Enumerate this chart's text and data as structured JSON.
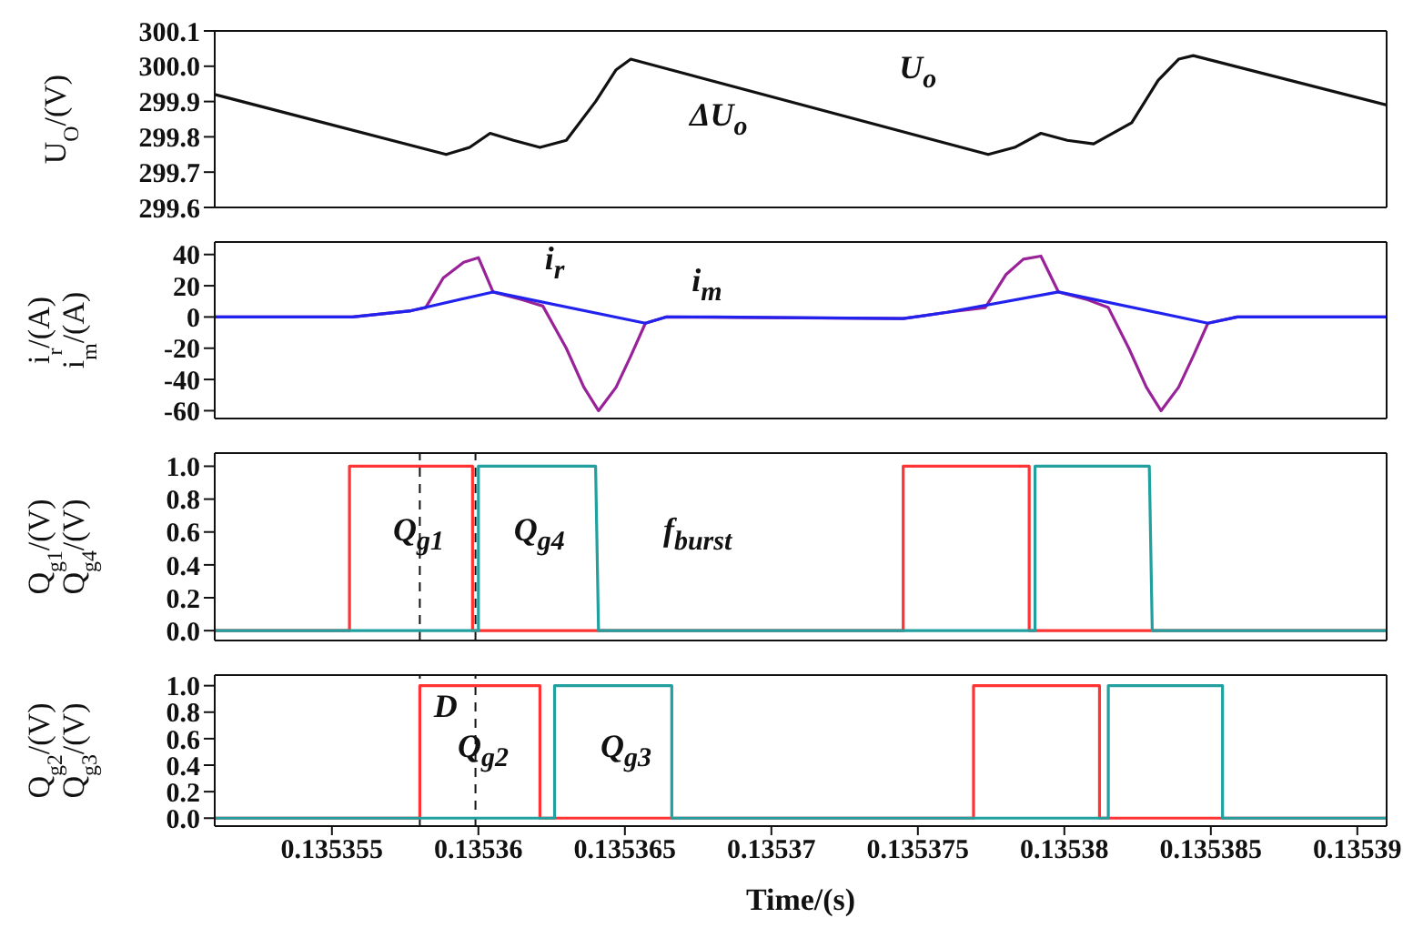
{
  "chart_data": [
    {
      "type": "line",
      "ylabel": "U$_{O}$/(V)",
      "xlim": [
        0.135351,
        0.135391
      ],
      "xticks": [
        0.135355,
        0.13536,
        0.135365,
        0.13537,
        0.135375,
        0.13538,
        0.135385,
        0.13539
      ],
      "ylim": [
        299.6,
        300.1
      ],
      "yticks": [
        {
          "value": 299.6,
          "label": "299.6"
        },
        {
          "value": 299.7,
          "label": "299.7"
        },
        {
          "value": 299.8,
          "label": "299.8"
        },
        {
          "value": 299.9,
          "label": "299.9"
        },
        {
          "value": 300,
          "label": "300.0"
        },
        {
          "value": 300.1,
          "label": "300.1"
        }
      ],
      "tick_labels": "y",
      "series": [
        {
          "color": "#111111",
          "x": [
            0.135351,
            0.1353589,
            0.1353597,
            0.1353604,
            0.1353612,
            0.1353621,
            0.135363,
            0.135364,
            0.1353647,
            0.1353652,
            0.1353774,
            0.1353783,
            0.1353792,
            0.1353801,
            0.135381,
            0.1353823,
            0.1353832,
            0.1353839,
            0.1353844,
            0.135391
          ],
          "values": [
            299.92,
            299.75,
            299.77,
            299.81,
            299.79,
            299.77,
            299.79,
            299.9,
            299.99,
            300.02,
            299.75,
            299.77,
            299.81,
            299.79,
            299.78,
            299.84,
            299.96,
            300.02,
            300.03,
            299.89
          ]
        }
      ],
      "annotations": [
        "ΔU$_{o}$",
        "U$_{o}$"
      ]
    },
    {
      "type": "line",
      "ylabel": "i$_{r}$/(A)\ni$_{m}$/(A)",
      "xlim": [
        0.135351,
        0.135391
      ],
      "xticks": [
        0.135355,
        0.13536,
        0.135365,
        0.13537,
        0.135375,
        0.13538,
        0.135385,
        0.13539
      ],
      "ylim": [
        -65,
        48
      ],
      "yticks": [
        -60,
        -40,
        -20,
        0,
        20,
        40
      ],
      "tick_labels": "y",
      "series": [
        {
          "color": "#992299",
          "x": [
            0.135351,
            0.1353557,
            0.1353577,
            0.1353582,
            0.1353588,
            0.1353595,
            0.13536,
            0.1353605,
            0.1353615,
            0.1353622,
            0.135363,
            0.1353636,
            0.1353641,
            0.1353647,
            0.1353652,
            0.1353657,
            0.1353664,
            0.1353745,
            0.135376,
            0.1353773,
            0.135378,
            0.1353786,
            0.1353792,
            0.1353798,
            0.1353808,
            0.1353815,
            0.1353822,
            0.1353828,
            0.1353833,
            0.1353839,
            0.1353844,
            0.1353849,
            0.1353859,
            0.135391
          ],
          "values": [
            0,
            0,
            4,
            6,
            25,
            35,
            38,
            16,
            11,
            7,
            -20,
            -45,
            -60,
            -45,
            -25,
            -4,
            0,
            -1,
            3,
            6,
            27,
            37,
            39,
            16,
            11,
            6,
            -20,
            -45,
            -60,
            -45,
            -25,
            -4,
            0,
            0
          ]
        },
        {
          "color": "#2222ee",
          "x": [
            0.135351,
            0.1353557,
            0.1353577,
            0.1353605,
            0.1353657,
            0.1353664,
            0.135368,
            0.1353745,
            0.135376,
            0.1353798,
            0.1353849,
            0.1353859,
            0.135391
          ],
          "values": [
            0,
            0,
            4,
            16,
            -4,
            0,
            0,
            -1,
            3,
            16,
            -4,
            0,
            0
          ]
        }
      ],
      "annotations": [
        "i$_{r}$",
        "i$_{m}$"
      ]
    },
    {
      "type": "line",
      "ylabel": "Q$_{g1}$/(V)\nQ$_{g4}$/(V)",
      "xlim": [
        0.135351,
        0.135391
      ],
      "xticks": [
        0.135355,
        0.13536,
        0.135365,
        0.13537,
        0.135375,
        0.13538,
        0.135385,
        0.13539
      ],
      "ylim": [
        -0.06,
        1.08
      ],
      "yticks": [
        {
          "value": 0,
          "label": "0.0"
        },
        0.2,
        0.4,
        0.6,
        0.8,
        {
          "value": 1,
          "label": "1.0"
        }
      ],
      "tick_labels": "y",
      "series": [
        {
          "color": "#ff3333",
          "x": [
            0.135351,
            0.1353556,
            0.1353556,
            0.1353598,
            0.1353598,
            0.1353745,
            0.1353745,
            0.1353788,
            0.1353788,
            0.135391
          ],
          "values": [
            0,
            0,
            1,
            1,
            0,
            0,
            1,
            1,
            0,
            0
          ]
        },
        {
          "color": "#22a0a0",
          "x": [
            0.135351,
            0.13536,
            0.13536,
            0.135364,
            0.1353641,
            0.135379,
            0.135379,
            0.1353829,
            0.135383,
            0.135391
          ],
          "values": [
            0,
            0,
            1,
            1,
            0,
            0,
            1,
            1,
            0,
            0
          ]
        }
      ],
      "ref_lines": [
        {
          "axis": "x",
          "value": 0.135358,
          "line_style": "dashed",
          "color": "#111111"
        },
        {
          "axis": "x",
          "value": 0.1353599,
          "line_style": "dashed",
          "color": "#111111"
        }
      ],
      "annotations": [
        "Q$_{g1}$",
        "Q$_{g4}$",
        "f$_{burst}$",
        "D"
      ]
    },
    {
      "type": "line",
      "ylabel": "Q$_{g2}$/(V)\nQ$_{g3}$/(V)",
      "xlabel": "Time/(s)",
      "xlim": [
        0.135351,
        0.135391
      ],
      "xticks": [
        0.135355,
        0.13536,
        0.135365,
        0.13537,
        0.135375,
        0.13538,
        0.135385,
        0.13539
      ],
      "ylim": [
        -0.06,
        1.08
      ],
      "yticks": [
        {
          "value": 0,
          "label": "0.0"
        },
        0.2,
        0.4,
        0.6,
        0.8,
        {
          "value": 1,
          "label": "1.0"
        }
      ],
      "series": [
        {
          "color": "#ff3333",
          "x": [
            0.135351,
            0.135358,
            0.135358,
            0.1353621,
            0.1353621,
            0.1353769,
            0.1353769,
            0.1353812,
            0.1353812,
            0.135391
          ],
          "values": [
            0,
            0,
            1,
            1,
            0,
            0,
            1,
            1,
            0,
            0
          ]
        },
        {
          "color": "#22a0a0",
          "x": [
            0.135351,
            0.1353626,
            0.1353626,
            0.1353666,
            0.1353666,
            0.1353815,
            0.1353815,
            0.1353854,
            0.1353854,
            0.135391
          ],
          "values": [
            0,
            0,
            1,
            1,
            0,
            0,
            1,
            1,
            0,
            0
          ]
        }
      ],
      "ref_lines": [
        {
          "axis": "x",
          "value": 0.135358,
          "line_style": "dashed",
          "color": "#111111"
        },
        {
          "axis": "x",
          "value": 0.1353599,
          "line_style": "dashed",
          "color": "#111111"
        }
      ],
      "annotations": [
        "Q$_{g2}$",
        "Q$_{g3}$"
      ]
    }
  ]
}
